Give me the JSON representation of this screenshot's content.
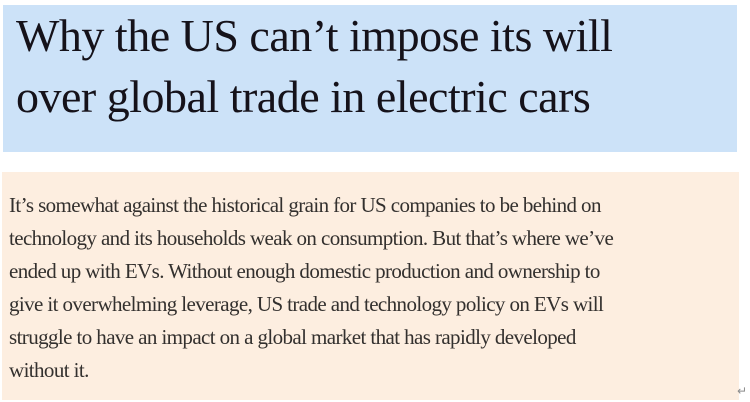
{
  "article": {
    "headline": {
      "text": "Why the US can’t impose its will over global trade in electric cars",
      "lines": [
        "Why the US can’t impose its will",
        "over global trade in electric cars"
      ]
    },
    "body": {
      "text": "It’s somewhat against the historical grain for US companies to be behind on technology and its households weak on consumption. But that’s where we’ve ended up with EVs. Without enough domestic production and ownership to give it overwhelming leverage, US trade and technology policy on EVs will struggle to have an impact on a global market that has rapidly developed without it.",
      "lines": [
        "It’s somewhat against the historical grain for US companies to be behind on",
        "technology and its households weak on consumption. But that’s where we’ve",
        "ended up with EVs. Without enough domestic production and ownership to",
        "give it overwhelming leverage, US trade and technology policy on EVs will",
        "struggle to have an impact on a global market that has rapidly developed",
        "without it."
      ]
    }
  },
  "icons": {
    "return_glyph": "↵"
  },
  "colors": {
    "headline_background": "#cce2f8",
    "body_background": "#fdeee0",
    "headline_text": "#15121a",
    "body_text": "#33302e",
    "return_icon": "#8b8b8b",
    "page_background": "#ffffff"
  }
}
